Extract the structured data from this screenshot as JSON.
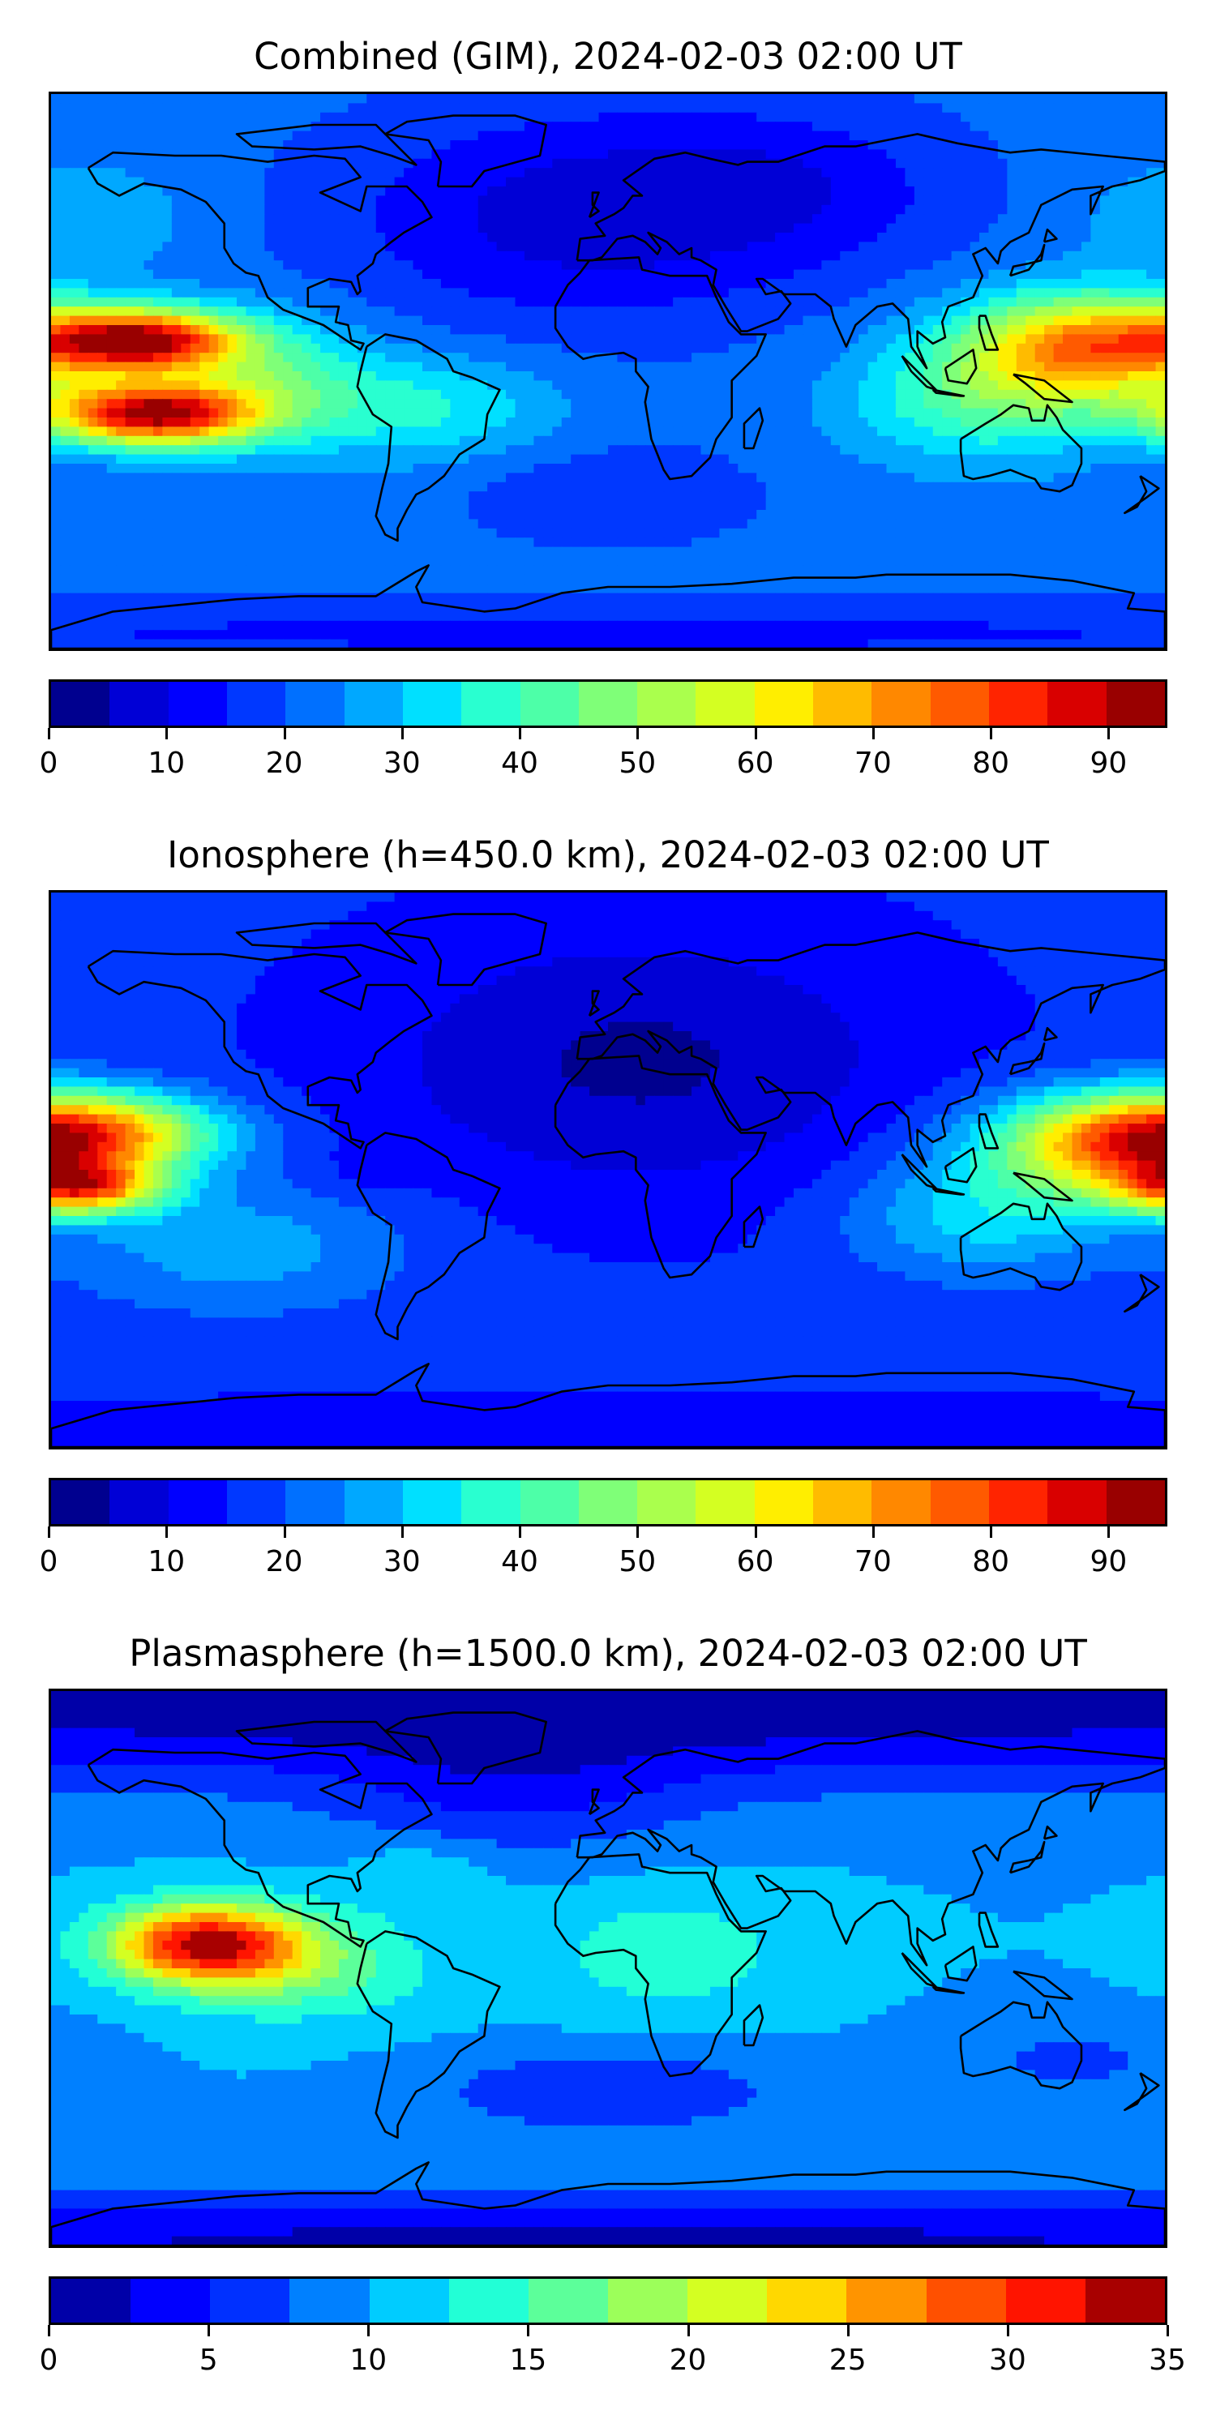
{
  "chart_data": [
    {
      "type": "heatmap",
      "title": "Combined (GIM), 2024-02-03 02:00 UT",
      "xlabel": "",
      "ylabel": "",
      "xlim": [
        -180,
        180
      ],
      "ylim": [
        -90,
        90
      ],
      "levels": {
        "min": 0,
        "max": 95,
        "step": 5
      },
      "colorbar_ticks": [
        "0",
        "10",
        "20",
        "30",
        "40",
        "50",
        "60",
        "70",
        "80",
        "90"
      ],
      "colorbar_tick_values": [
        0,
        10,
        20,
        30,
        40,
        50,
        60,
        70,
        80,
        90
      ],
      "colorbar_colors": [
        "#00008f",
        "#0000d6",
        "#0000ff",
        "#0038ff",
        "#0070ff",
        "#00a8ff",
        "#00e0ff",
        "#29ffd0",
        "#4dffa8",
        "#7fff78",
        "#aaff4d",
        "#d4ff22",
        "#ffee00",
        "#ffbb00",
        "#ff8800",
        "#ff5a00",
        "#ff2400",
        "#d90000",
        "#990000"
      ],
      "field": {
        "background": 22,
        "anomalies": [
          {
            "lon": -152,
            "lat": 10,
            "amp": 66,
            "slon": 22,
            "slat": 7
          },
          {
            "lon": -148,
            "lat": -14,
            "amp": 66,
            "slon": 24,
            "slat": 7
          },
          {
            "lon": -115,
            "lat": -2,
            "amp": 20,
            "slon": 25,
            "slat": 14
          },
          {
            "lon": 155,
            "lat": 8,
            "amp": 50,
            "slon": 28,
            "slat": 12
          },
          {
            "lon": 120,
            "lat": -10,
            "amp": 18,
            "slon": 30,
            "slat": 14
          },
          {
            "lon": -60,
            "lat": -12,
            "amp": 14,
            "slon": 30,
            "slat": 12
          },
          {
            "lon": -10,
            "lat": 50,
            "amp": -14,
            "slon": 55,
            "slat": 25
          },
          {
            "lon": 60,
            "lat": 60,
            "amp": -8,
            "slon": 40,
            "slat": 18
          },
          {
            "lon": -170,
            "lat": 50,
            "amp": 8,
            "slon": 25,
            "slat": 12
          },
          {
            "lon": 0,
            "lat": -40,
            "amp": -6,
            "slon": 35,
            "slat": 12
          },
          {
            "lon": 0,
            "lat": -85,
            "amp": -8,
            "slon": 300,
            "slat": 8
          }
        ]
      }
    },
    {
      "type": "heatmap",
      "title": "Ionosphere  (h=450.0 km), 2024-02-03 02:00 UT",
      "xlabel": "",
      "ylabel": "",
      "xlim": [
        -180,
        180
      ],
      "ylim": [
        -90,
        90
      ],
      "levels": {
        "min": 0,
        "max": 95,
        "step": 5
      },
      "colorbar_ticks": [
        "0",
        "10",
        "20",
        "30",
        "40",
        "50",
        "60",
        "70",
        "80",
        "90"
      ],
      "colorbar_tick_values": [
        0,
        10,
        20,
        30,
        40,
        50,
        60,
        70,
        80,
        90
      ],
      "colorbar_colors": [
        "#00008f",
        "#0000d6",
        "#0000ff",
        "#0038ff",
        "#0070ff",
        "#00a8ff",
        "#00e0ff",
        "#29ffd0",
        "#4dffa8",
        "#7fff78",
        "#aaff4d",
        "#d4ff22",
        "#ffee00",
        "#ffbb00",
        "#ff8800",
        "#ff5a00",
        "#ff2400",
        "#d90000",
        "#990000"
      ],
      "field": {
        "background": 16,
        "anomalies": [
          {
            "lon": -165,
            "lat": 12,
            "amp": 42,
            "slon": 28,
            "slat": 9
          },
          {
            "lon": -170,
            "lat": -6,
            "amp": 48,
            "slon": 18,
            "slat": 6
          },
          {
            "lon": 165,
            "lat": 8,
            "amp": 48,
            "slon": 30,
            "slat": 12
          },
          {
            "lon": 120,
            "lat": -15,
            "amp": 16,
            "slon": 30,
            "slat": 14
          },
          {
            "lon": -120,
            "lat": -25,
            "amp": 12,
            "slon": 40,
            "slat": 15
          },
          {
            "lon": 10,
            "lat": 35,
            "amp": -12,
            "slon": 60,
            "slat": 30
          },
          {
            "lon": -75,
            "lat": 0,
            "amp": -4,
            "slon": 10,
            "slat": 6
          },
          {
            "lon": 0,
            "lat": -88,
            "amp": -6,
            "slon": 300,
            "slat": 8
          }
        ]
      }
    },
    {
      "type": "heatmap",
      "title": "Plasmasphere (h=1500.0 km), 2024-02-03 02:00 UT",
      "xlabel": "",
      "ylabel": "",
      "xlim": [
        -180,
        180
      ],
      "ylim": [
        -90,
        90
      ],
      "levels": {
        "min": 0,
        "max": 35,
        "step": 2.5
      },
      "colorbar_ticks": [
        "0",
        "5",
        "10",
        "15",
        "20",
        "25",
        "30",
        "35"
      ],
      "colorbar_tick_values": [
        0,
        5,
        10,
        15,
        20,
        25,
        30,
        35
      ],
      "colorbar_colors": [
        "#0000a8",
        "#0000ff",
        "#0030ff",
        "#0080ff",
        "#00ccff",
        "#22ffd6",
        "#5cff9a",
        "#9cff5a",
        "#d4ff22",
        "#ffd800",
        "#ff9400",
        "#ff5000",
        "#ff1400",
        "#a80000"
      ],
      "field": {
        "background": 10,
        "anomalies": [
          {
            "lon": -130,
            "lat": 8,
            "amp": 22,
            "slon": 22,
            "slat": 9
          },
          {
            "lon": -100,
            "lat": 0,
            "amp": 6,
            "slon": 30,
            "slat": 12
          },
          {
            "lon": 20,
            "lat": 5,
            "amp": 4,
            "slon": 30,
            "slat": 15
          },
          {
            "lon": -60,
            "lat": 30,
            "amp": 3,
            "slon": 15,
            "slat": 8
          },
          {
            "lon": 0,
            "lat": 85,
            "amp": -9,
            "slon": 400,
            "slat": 18
          },
          {
            "lon": -30,
            "lat": 55,
            "amp": -4,
            "slon": 40,
            "slat": 15
          },
          {
            "lon": 0,
            "lat": -88,
            "amp": -8,
            "slon": 400,
            "slat": 10
          },
          {
            "lon": 0,
            "lat": -40,
            "amp": -5,
            "slon": 40,
            "slat": 10
          },
          {
            "lon": 150,
            "lat": -30,
            "amp": -3,
            "slon": 30,
            "slat": 10
          }
        ]
      }
    }
  ]
}
